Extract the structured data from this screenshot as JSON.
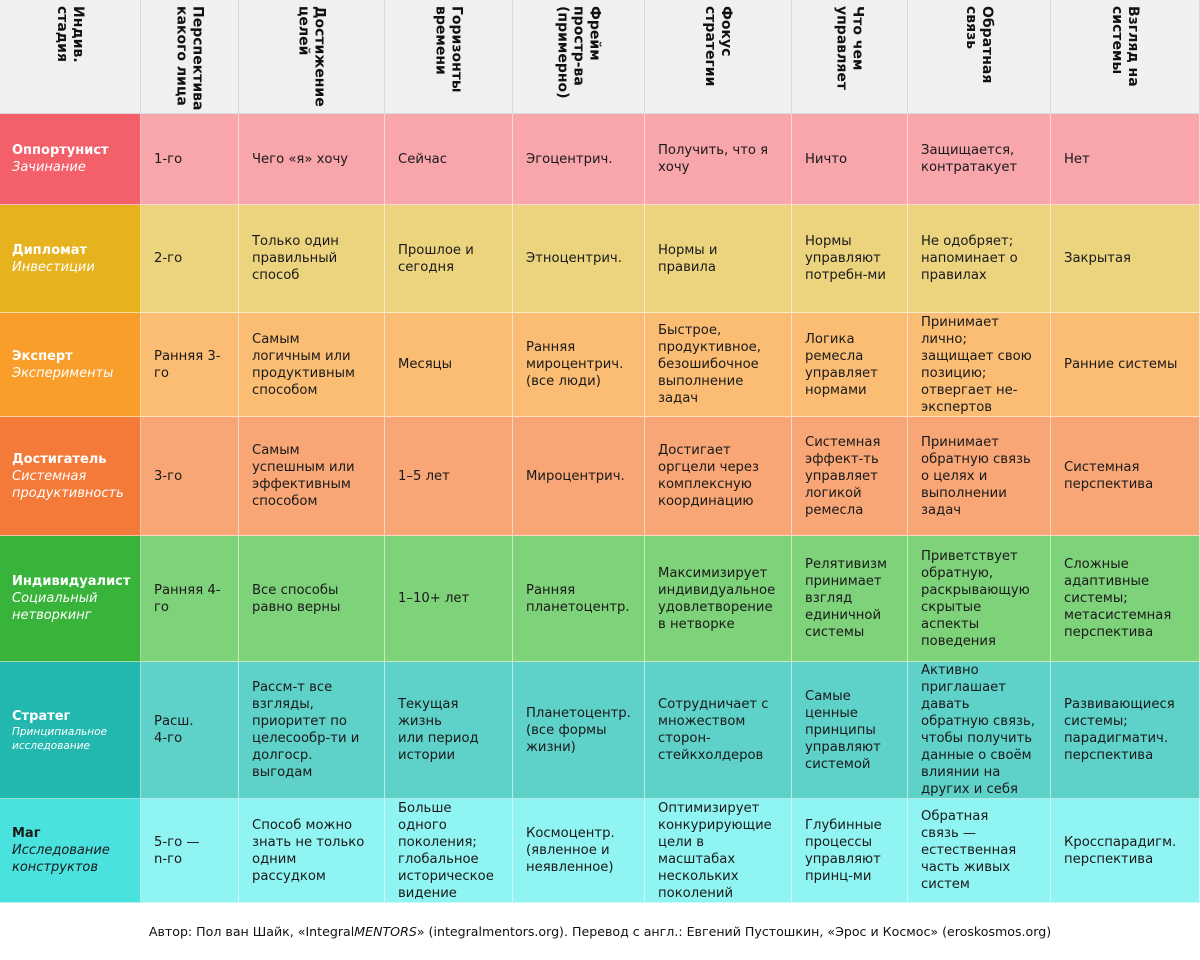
{
  "headers": [
    "Индив.\nстадия",
    "Перспектива\nкакого лица",
    "Достижение\nцелей",
    "Горизонты\nвремени",
    "Фрейм\nпростр-ва\n(примерно)",
    "Фокус\nстратегии",
    "Что чем\nуправляет",
    "Обратная\nсвязь",
    "Взгляд на\nсистемы"
  ],
  "rows": [
    {
      "stage": "Оппортунист",
      "subtitle": "Зачинание",
      "colors": {
        "stage": "#f4606a",
        "body": "#f8a5ab"
      },
      "cells": [
        "1-го",
        "Чего «я» хочу",
        "Сейчас",
        "Эгоцентрич.",
        "Получить, что я\nхочу",
        "Ничто",
        "Защищается,\nконтратакует",
        "Нет"
      ]
    },
    {
      "stage": "Дипломат",
      "subtitle": "Инвестиции",
      "colors": {
        "stage": "#e6b31e",
        "body": "#ecd47f"
      },
      "cells": [
        "2-го",
        "Только один\nправильный\nспособ",
        "Прошлое и\nсегодня",
        "Этноцентрич.",
        "Нормы и\nправила",
        "Нормы\nуправляют\nпотребн-ми",
        "Не одобряет;\nнапоминает о\nправилах",
        "Закрытая"
      ]
    },
    {
      "stage": "Эксперт",
      "subtitle": "Эксперименты",
      "colors": {
        "stage": "#f99e2a",
        "body": "#fbbd73"
      },
      "cells": [
        "Ранняя 3-\nго",
        "Самым\nлогичным или\nпродуктивным\nспособом",
        "Месяцы",
        "Ранняя\nмироцентрич.\n(все люди)",
        "Быстрое,\nпродуктивное,\nбезошибочное\nвыполнение\nзадач",
        "Логика\nремесла\nуправляет\nнормами",
        "Принимает\nлично;\nзащищает свою\nпозицию;\nотвергает не-\nэкспертов",
        "Ранние системы"
      ]
    },
    {
      "stage": "Достигатель",
      "subtitle": "Системная\nпродуктивность",
      "colors": {
        "stage": "#f47a3a",
        "body": "#f8a675"
      },
      "cells": [
        "3-го",
        "Самым\nуспешным или\nэффективным\nспособом",
        "1–5 лет",
        "Мироцентрич.",
        "Достигает\nоргцели через\nкомплексную\nкоординацию",
        "Системная\nэффект-ть\nуправляет\nлогикой\nремесла",
        "Принимает\nобратную связь\nо целях и\nвыполнении\nзадач",
        "Системная\nперспектива"
      ]
    },
    {
      "stage": "Индивидуалист",
      "subtitle": "Социальный\nнетворкинг",
      "colors": {
        "stage": "#38b43a",
        "body": "#7ed27a"
      },
      "cells": [
        "Ранняя 4-\nго",
        "Все способы\nравно верны",
        "1–10+ лет",
        "Ранняя\nпланетоцентр.",
        "Максимизирует\nиндивидуальное\nудовлетворение\nв нетворке",
        "Релятивизм\nпринимает\nвзгляд\nединичной\nсистемы",
        "Приветствует\nобратную,\nраскрывающую\nскрытые\nаспекты\nповедения",
        "Сложные\nадаптивные\nсистемы;\nметасистемная\nперспектива"
      ]
    },
    {
      "stage": "Стратег",
      "subtitle": "Принципиальное\nисследование",
      "colors": {
        "stage": "#22b8b0",
        "body": "#5ed1c9"
      },
      "cells": [
        "Расш.\n4-го",
        "Рассм-т все\nвзгляды,\nприоритет по\nцелесообр-ти и\nдолгоср.\nвыгодам",
        "Текущая жизнь\nили период\nистории",
        "Планетоцентр.\n(все формы\nжизни)",
        "Сотрудничает с\nмножеством\nсторон-\nстейкхолдеров",
        "Самые\nценные\nпринципы\nуправляют\nсистемой",
        "Активно\nприглашает\nдавать\nобратную связь,\nчтобы получить\nданные о своём\nвлиянии на\nдругих и себя",
        "Развивающиеся\nсистемы;\nпарадигматич.\nперспектива"
      ]
    },
    {
      "stage": "Маг",
      "subtitle": "Исследование\nконструктов",
      "colors": {
        "stage": "#4ae2de",
        "body": "#8ff4f2"
      },
      "cells": [
        "5-го —\nn-го",
        "Способ можно\nзнать не только\nодним\nрассудком",
        "Больше\nодного\nпоколения;\nглобальное\nисторическое\nвидение",
        "Космоцентр.\n(явленное и\nнеявленное)",
        "Оптимизирует\nконкурирующие\nцели в\nмасштабах\nнескольких\nпоколений",
        "Глубинные\nпроцессы\nуправляют\nпринц-ми",
        "Обратная\nсвязь —\nестественная\nчасть живых\nсистем",
        "Кросспарадигм.\nперспектива"
      ]
    }
  ],
  "footer": {
    "part1": "Автор: Пол ван Шайк, «Integral",
    "part2": "MENTORS",
    "part3": "» (integralmentors.org). Перевод с англ.: Евгений Пустошкин, «Эрос и Космос» (eroskosmos.org)"
  }
}
